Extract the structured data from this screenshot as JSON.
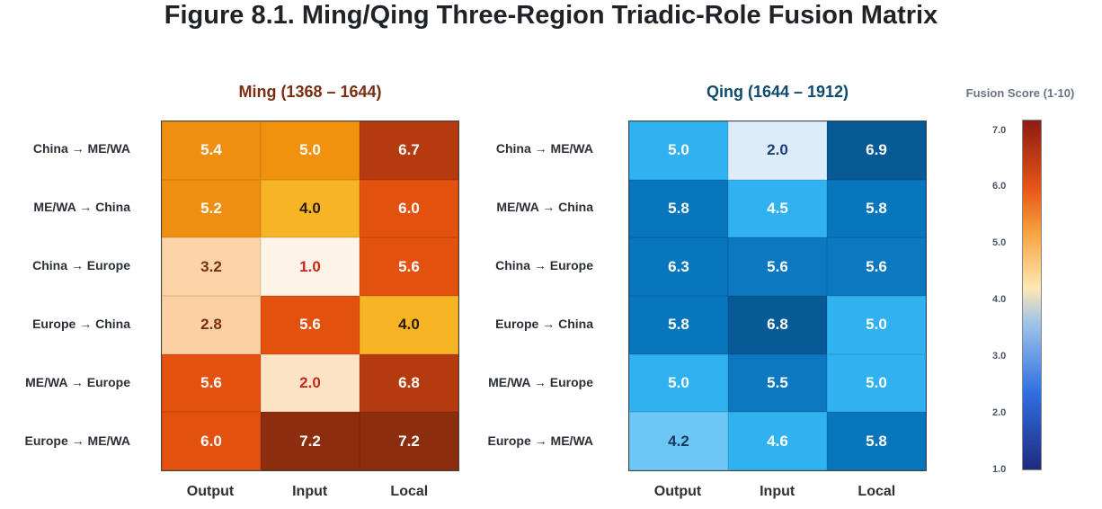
{
  "title": "Figure 8.1. Ming/Qing Three-Region Triadic-Role Fusion Matrix",
  "chart_data": {
    "type": "heatmap",
    "rows": [
      "China → ME/WA",
      "ME/WA → China",
      "China → Europe",
      "Europe → China",
      "ME/WA → Europe",
      "Europe → ME/WA"
    ],
    "columns": [
      "Output",
      "Input",
      "Local"
    ],
    "panels": [
      {
        "title": "Ming (1368 – 1644)",
        "title_color": "#7a2e12",
        "values": [
          [
            5.4,
            5.0,
            6.7
          ],
          [
            5.2,
            4.0,
            6.0
          ],
          [
            3.2,
            1.0,
            5.6
          ],
          [
            2.8,
            5.6,
            4.0
          ],
          [
            5.6,
            2.0,
            6.8
          ],
          [
            6.0,
            7.2,
            7.2
          ]
        ],
        "display": [
          [
            "5.4",
            "5.0",
            "6.7"
          ],
          [
            "5.2",
            "4.0",
            "6.0"
          ],
          [
            "3.2",
            "1.0",
            "5.6"
          ],
          [
            "2.8",
            "5.6",
            "4.0"
          ],
          [
            "5.6",
            "2.0",
            "6.8"
          ],
          [
            "6.0",
            "7.2",
            "7.2"
          ]
        ]
      },
      {
        "title": "Qing (1644 – 1912)",
        "title_color": "#0f4a6e",
        "values": [
          [
            5.0,
            2.0,
            6.9
          ],
          [
            5.8,
            4.5,
            5.8
          ],
          [
            6.3,
            5.6,
            5.6
          ],
          [
            5.8,
            6.8,
            5.0
          ],
          [
            5.0,
            5.5,
            5.0
          ],
          [
            4.2,
            4.6,
            5.8
          ]
        ],
        "display": [
          [
            "5.0",
            "2.0",
            "6.9"
          ],
          [
            "5.8",
            "4.5",
            "5.8"
          ],
          [
            "6.3",
            "5.6",
            "5.6"
          ],
          [
            "5.8",
            "6.8",
            "5.0"
          ],
          [
            "5.0",
            "5.5",
            "5.0"
          ],
          [
            "4.2",
            "4.6",
            "5.8"
          ]
        ]
      }
    ],
    "colorbar": {
      "label": "Fusion Score (1-10)",
      "range": [
        1.0,
        7.2
      ],
      "ticks": [
        "1.0",
        "2.0",
        "3.0",
        "4.0",
        "5.0",
        "6.0",
        "7.0"
      ]
    }
  }
}
